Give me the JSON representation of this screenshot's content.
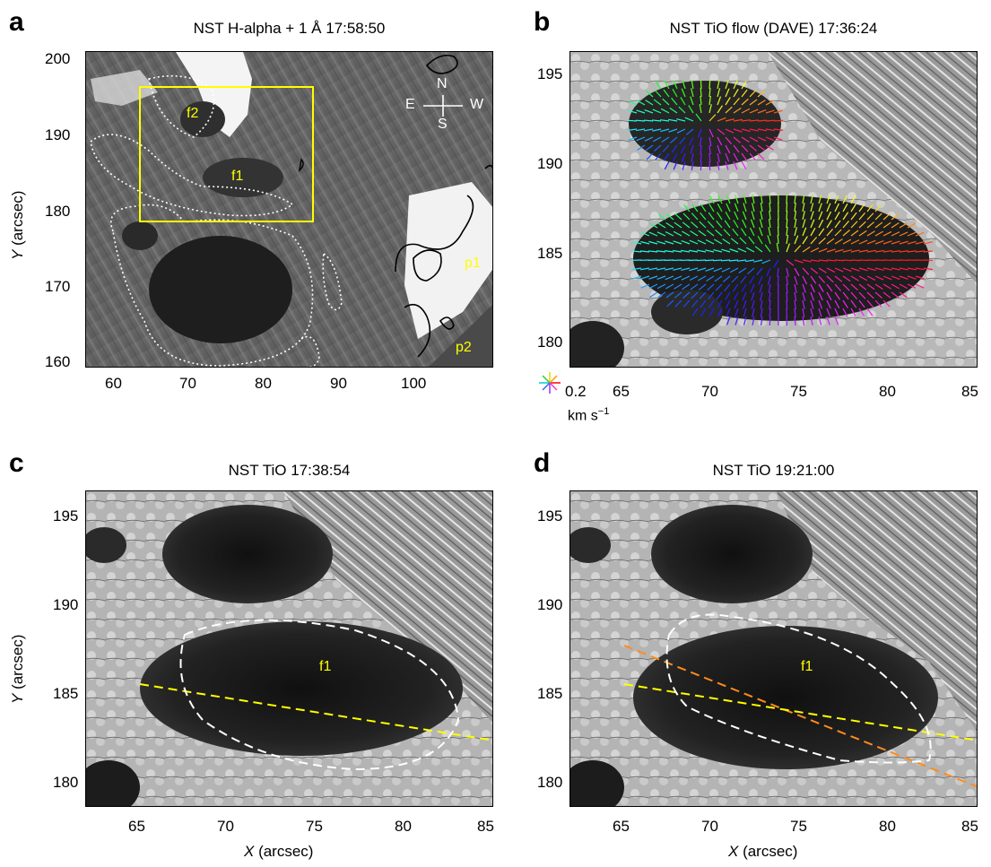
{
  "panels": {
    "a": {
      "letter": "a",
      "title": "NST H-alpha + 1 Å 17:58:50",
      "xticks": [
        "60",
        "70",
        "80",
        "90",
        "100"
      ],
      "yticks": [
        "200",
        "190",
        "180",
        "170",
        "160"
      ],
      "ylabel_italic": "Y",
      "ylabel_rest": " (arcsec)",
      "labels": {
        "f2": "f2",
        "f1": "f1",
        "p1": "p1",
        "p2": "p2"
      },
      "compass": {
        "N": "N",
        "S": "S",
        "E": "E",
        "W": "W"
      }
    },
    "b": {
      "letter": "b",
      "title": "NST TiO flow (DAVE) 17:36:24",
      "xticks": [
        "65",
        "70",
        "75",
        "80",
        "85"
      ],
      "yticks": [
        "195",
        "190",
        "185",
        "180"
      ],
      "legend_value": "0.2",
      "legend_unit": "km s",
      "legend_unit_sup": "−1"
    },
    "c": {
      "letter": "c",
      "title": "NST TiO 17:38:54",
      "xticks": [
        "65",
        "70",
        "75",
        "80",
        "85"
      ],
      "yticks": [
        "195",
        "190",
        "185",
        "180"
      ],
      "ylabel_italic": "Y",
      "ylabel_rest": " (arcsec)",
      "xlabel_italic": "X",
      "xlabel_rest": " (arcsec)",
      "label_f1": "f1"
    },
    "d": {
      "letter": "d",
      "title": "NST TiO 19:21:00",
      "xticks": [
        "65",
        "70",
        "75",
        "80",
        "85"
      ],
      "yticks": [
        "195",
        "190",
        "185",
        "180"
      ],
      "xlabel_italic": "X",
      "xlabel_rest": " (arcsec)",
      "label_f1": "f1"
    }
  },
  "colors": {
    "yellow": "#ffff00",
    "orange": "#ff8c1a",
    "white": "#ffffff"
  }
}
